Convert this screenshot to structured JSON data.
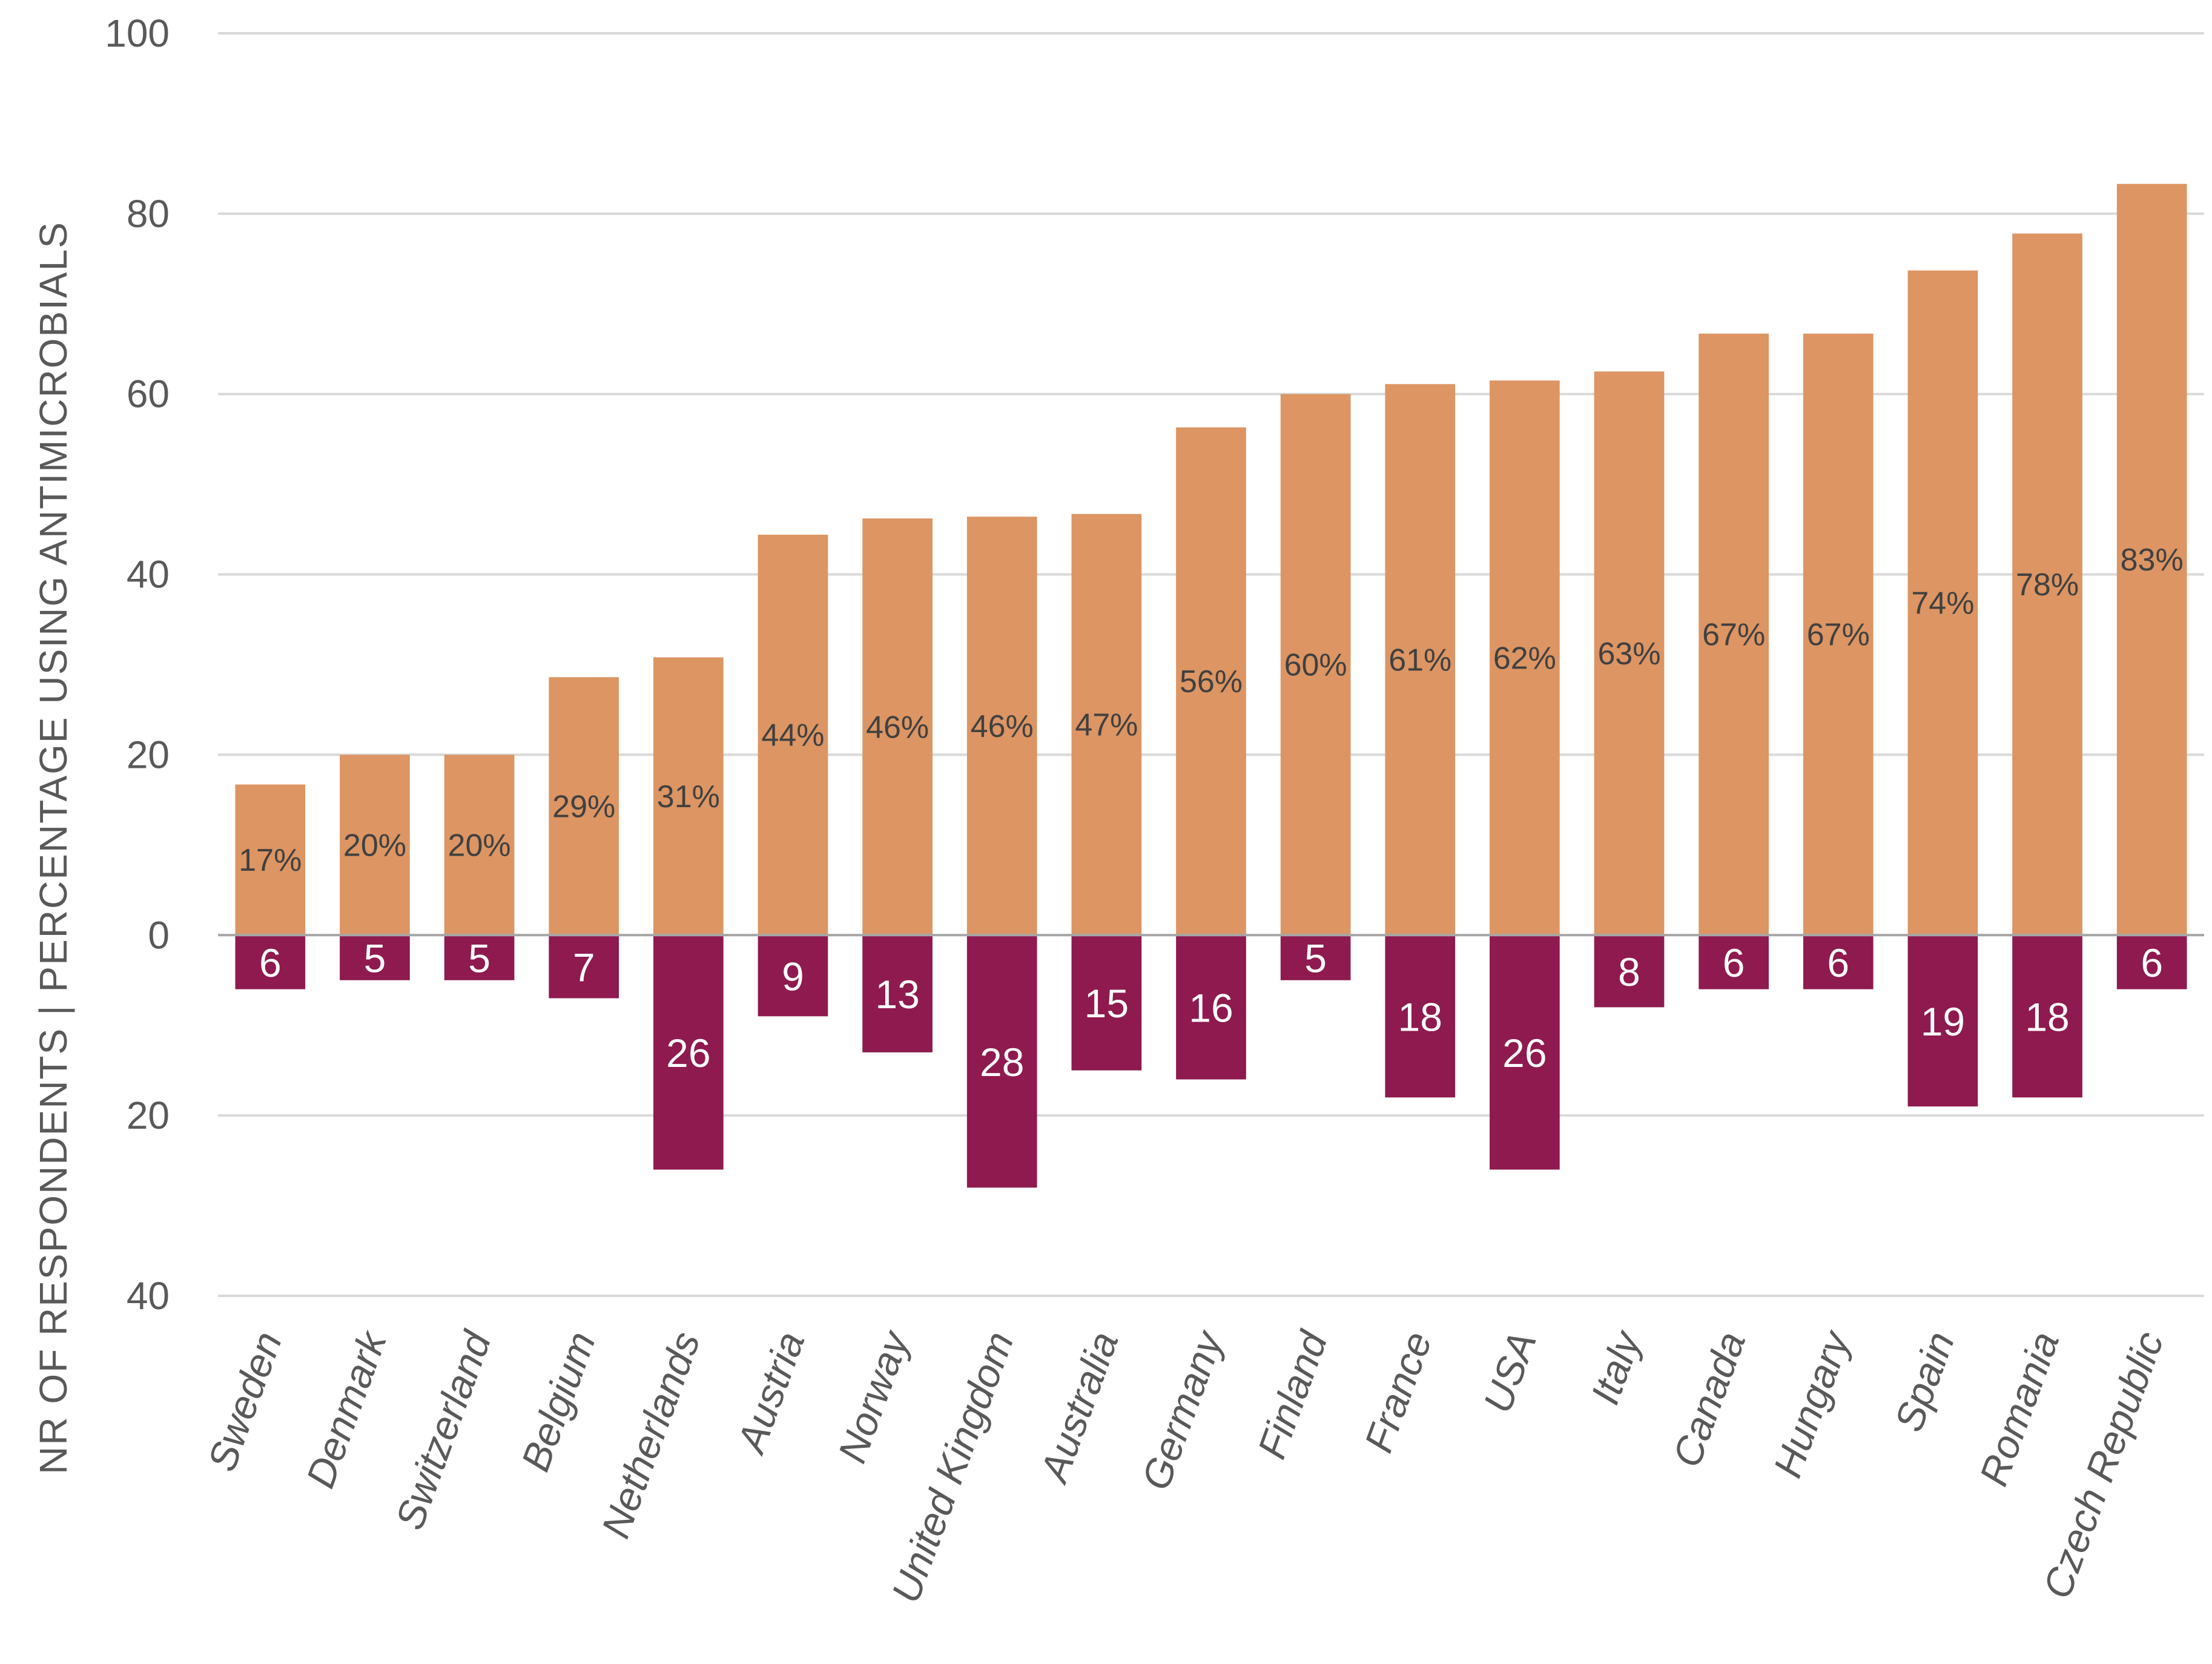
{
  "chart_data": {
    "type": "bar",
    "ylabel": "NR OF RESPONDENTS  |   PERCENTAGE USING ANTIMICROBIALS",
    "ylim": [
      -40,
      100
    ],
    "y_ticks": [
      {
        "value": 100,
        "label": "100"
      },
      {
        "value": 80,
        "label": "80"
      },
      {
        "value": 60,
        "label": "60"
      },
      {
        "value": 40,
        "label": "40"
      },
      {
        "value": 20,
        "label": "20"
      },
      {
        "value": 0,
        "label": "0"
      },
      {
        "value": -20,
        "label": "20"
      },
      {
        "value": -40,
        "label": "40"
      }
    ],
    "grid": true,
    "categories": [
      "Sweden",
      "Denmark",
      "Switzerland",
      "Belgium",
      "Netherlands",
      "Austria",
      "Norway",
      "United Kingdom",
      "Australia",
      "Germany",
      "Finland",
      "France",
      "USA",
      "Italy",
      "Canada",
      "Hungary",
      "Spain",
      "Romania",
      "Czech Republic"
    ],
    "series": [
      {
        "values": [
          16.7,
          20,
          20,
          28.6,
          30.8,
          44.4,
          46.2,
          46.4,
          46.7,
          56.3,
          60,
          61.1,
          61.5,
          62.5,
          66.7,
          66.7,
          73.7,
          77.8,
          83.3
        ],
        "labels": [
          "17%",
          "20%",
          "20%",
          "29%",
          "31%",
          "44%",
          "46%",
          "46%",
          "47%",
          "56%",
          "60%",
          "61%",
          "62%",
          "63%",
          "67%",
          "67%",
          "74%",
          "78%",
          "83%"
        ],
        "color": "#DC9563"
      },
      {
        "values": [
          6,
          5,
          5,
          7,
          26,
          9,
          13,
          28,
          15,
          16,
          5,
          18,
          26,
          8,
          6,
          6,
          19,
          18,
          6
        ],
        "labels": [
          "6",
          "5",
          "5",
          "7",
          "26",
          "9",
          "13",
          "28",
          "15",
          "16",
          "5",
          "18",
          "26",
          "8",
          "6",
          "6",
          "19",
          "18",
          "6"
        ],
        "color": "#8E1A4F"
      }
    ]
  }
}
